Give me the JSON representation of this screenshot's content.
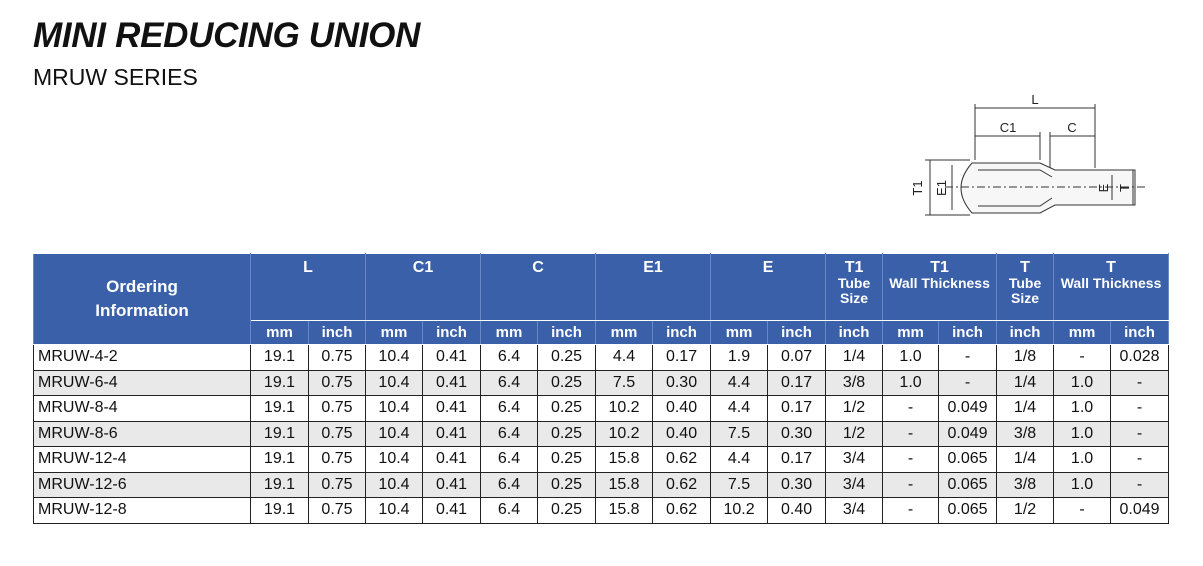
{
  "header": {
    "title": "MINI REDUCING UNION",
    "subtitle": "MRUW SERIES"
  },
  "diagram": {
    "labels": {
      "L": "L",
      "C1": "C1",
      "C": "C",
      "T1": "T1",
      "E1": "E1",
      "E": "E",
      "T": "T"
    }
  },
  "table": {
    "groups": [
      {
        "title": "Ordering Information"
      },
      {
        "title": "L"
      },
      {
        "title": "C1"
      },
      {
        "title": "C"
      },
      {
        "title": "E1"
      },
      {
        "title": "E"
      },
      {
        "title": "T1",
        "subtitle": "Tube Size"
      },
      {
        "title": "T1",
        "subtitle": "Wall Thickness"
      },
      {
        "title": "T",
        "subtitle": "Tube Size"
      },
      {
        "title": "T",
        "subtitle": "Wall Thickness"
      }
    ],
    "units": [
      "mm",
      "inch",
      "mm",
      "inch",
      "mm",
      "inch",
      "mm",
      "inch",
      "mm",
      "inch",
      "inch",
      "mm",
      "inch",
      "inch",
      "mm",
      "inch"
    ],
    "rows": [
      [
        "MRUW-4-2",
        "19.1",
        "0.75",
        "10.4",
        "0.41",
        "6.4",
        "0.25",
        "4.4",
        "0.17",
        "1.9",
        "0.07",
        "1/4",
        "1.0",
        "-",
        "1/8",
        "-",
        "0.028"
      ],
      [
        "MRUW-6-4",
        "19.1",
        "0.75",
        "10.4",
        "0.41",
        "6.4",
        "0.25",
        "7.5",
        "0.30",
        "4.4",
        "0.17",
        "3/8",
        "1.0",
        "-",
        "1/4",
        "1.0",
        "-"
      ],
      [
        "MRUW-8-4",
        "19.1",
        "0.75",
        "10.4",
        "0.41",
        "6.4",
        "0.25",
        "10.2",
        "0.40",
        "4.4",
        "0.17",
        "1/2",
        "-",
        "0.049",
        "1/4",
        "1.0",
        "-"
      ],
      [
        "MRUW-8-6",
        "19.1",
        "0.75",
        "10.4",
        "0.41",
        "6.4",
        "0.25",
        "10.2",
        "0.40",
        "7.5",
        "0.30",
        "1/2",
        "-",
        "0.049",
        "3/8",
        "1.0",
        "-"
      ],
      [
        "MRUW-12-4",
        "19.1",
        "0.75",
        "10.4",
        "0.41",
        "6.4",
        "0.25",
        "15.8",
        "0.62",
        "4.4",
        "0.17",
        "3/4",
        "-",
        "0.065",
        "1/4",
        "1.0",
        "-"
      ],
      [
        "MRUW-12-6",
        "19.1",
        "0.75",
        "10.4",
        "0.41",
        "6.4",
        "0.25",
        "15.8",
        "0.62",
        "7.5",
        "0.30",
        "3/4",
        "-",
        "0.065",
        "3/8",
        "1.0",
        "-"
      ],
      [
        "MRUW-12-8",
        "19.1",
        "0.75",
        "10.4",
        "0.41",
        "6.4",
        "0.25",
        "15.8",
        "0.62",
        "10.2",
        "0.40",
        "3/4",
        "-",
        "0.065",
        "1/2",
        "-",
        "0.049"
      ]
    ]
  }
}
